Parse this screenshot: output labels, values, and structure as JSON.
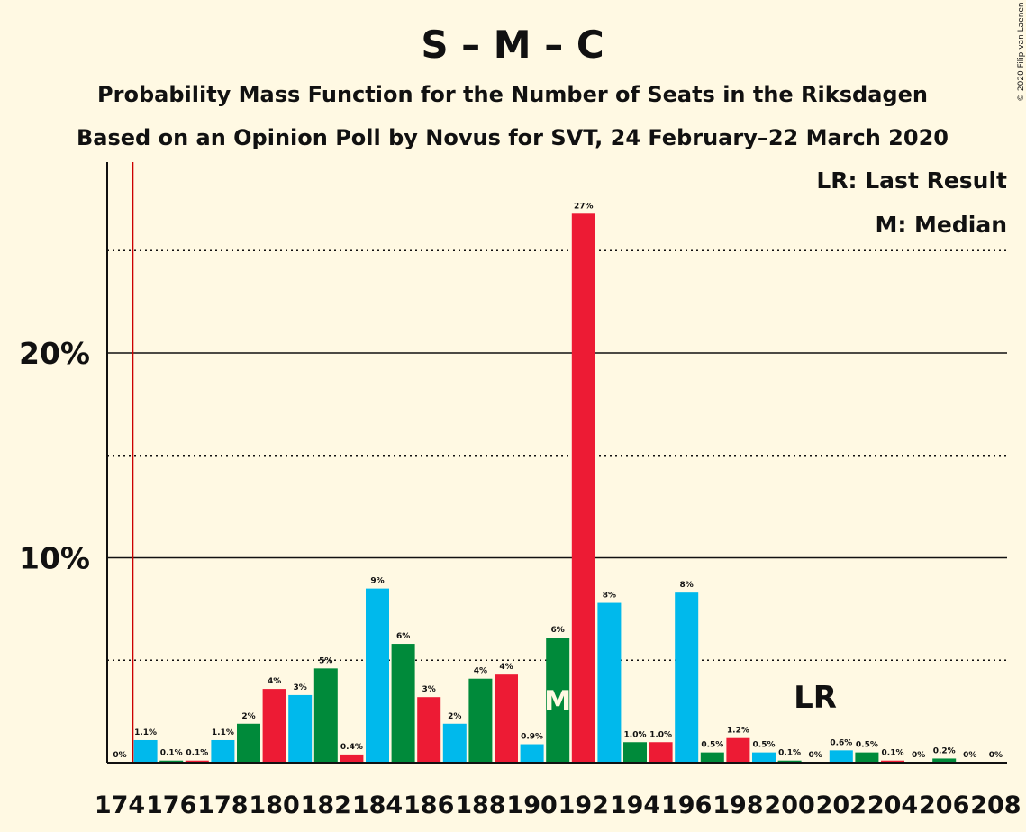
{
  "chart_data": {
    "type": "bar",
    "title": "S – M – C",
    "subtitle": "Probability Mass Function for the Number of Seats in the Riksdagen",
    "subtitle2": "Based on an Opinion Poll by Novus for SVT, 24 February–22 March 2020",
    "copyright": "© 2020 Filip van Laenen",
    "legend": [
      {
        "key": "lr",
        "text": "LR: Last Result"
      },
      {
        "key": "m",
        "text": "M: Median"
      }
    ],
    "legend_placement": "top-right",
    "ylim": [
      0,
      29
    ],
    "y_ticks": [
      {
        "value": 10,
        "label": "10%"
      },
      {
        "value": 20,
        "label": "20%"
      }
    ],
    "y_dotted": [
      5,
      15,
      25
    ],
    "x_tick_labels": [
      "174",
      "176",
      "178",
      "180",
      "182",
      "184",
      "186",
      "188",
      "190",
      "192",
      "194",
      "196",
      "198",
      "200",
      "202",
      "204",
      "206",
      "208"
    ],
    "last_result_seat": 175,
    "last_result_label": "LR",
    "median_seat": 191,
    "median_label": "M",
    "colors": {
      "S": "#ED1B34",
      "M": "#00B9EC",
      "C": "#008A3A",
      "lr_line": "#CC0000"
    },
    "bars": [
      {
        "seat": 174,
        "value": 0,
        "label": "0%",
        "color": "#ED1B34"
      },
      {
        "seat": 175,
        "value": 1.1,
        "label": "1.1%",
        "color": "#00B9EC"
      },
      {
        "seat": 176,
        "value": 0.1,
        "label": "0.1%",
        "color": "#008A3A"
      },
      {
        "seat": 177,
        "value": 0.1,
        "label": "0.1%",
        "color": "#ED1B34"
      },
      {
        "seat": 178,
        "value": 1.1,
        "label": "1.1%",
        "color": "#00B9EC"
      },
      {
        "seat": 179,
        "value": 1.9,
        "label": "2%",
        "color": "#008A3A"
      },
      {
        "seat": 180,
        "value": 3.6,
        "label": "4%",
        "color": "#ED1B34"
      },
      {
        "seat": 181,
        "value": 3.3,
        "label": "3%",
        "color": "#00B9EC"
      },
      {
        "seat": 182,
        "value": 4.6,
        "label": "5%",
        "color": "#008A3A"
      },
      {
        "seat": 183,
        "value": 0.4,
        "label": "0.4%",
        "color": "#ED1B34"
      },
      {
        "seat": 184,
        "value": 8.5,
        "label": "9%",
        "color": "#00B9EC"
      },
      {
        "seat": 185,
        "value": 5.8,
        "label": "6%",
        "color": "#008A3A"
      },
      {
        "seat": 186,
        "value": 3.2,
        "label": "3%",
        "color": "#ED1B34"
      },
      {
        "seat": 187,
        "value": 1.9,
        "label": "2%",
        "color": "#00B9EC"
      },
      {
        "seat": 188,
        "value": 4.1,
        "label": "4%",
        "color": "#008A3A"
      },
      {
        "seat": 189,
        "value": 4.3,
        "label": "4%",
        "color": "#ED1B34"
      },
      {
        "seat": 190,
        "value": 0.9,
        "label": "0.9%",
        "color": "#00B9EC"
      },
      {
        "seat": 191,
        "value": 6.1,
        "label": "6%",
        "color": "#008A3A"
      },
      {
        "seat": 192,
        "value": 26.8,
        "label": "27%",
        "color": "#ED1B34"
      },
      {
        "seat": 193,
        "value": 7.8,
        "label": "8%",
        "color": "#00B9EC"
      },
      {
        "seat": 194,
        "value": 1.0,
        "label": "1.0%",
        "color": "#008A3A"
      },
      {
        "seat": 195,
        "value": 1.0,
        "label": "1.0%",
        "color": "#ED1B34"
      },
      {
        "seat": 196,
        "value": 8.3,
        "label": "8%",
        "color": "#00B9EC"
      },
      {
        "seat": 197,
        "value": 0.5,
        "label": "0.5%",
        "color": "#008A3A"
      },
      {
        "seat": 198,
        "value": 1.2,
        "label": "1.2%",
        "color": "#ED1B34"
      },
      {
        "seat": 199,
        "value": 0.5,
        "label": "0.5%",
        "color": "#00B9EC"
      },
      {
        "seat": 200,
        "value": 0.1,
        "label": "0.1%",
        "color": "#008A3A"
      },
      {
        "seat": 201,
        "value": 0,
        "label": "0%",
        "color": "#ED1B34"
      },
      {
        "seat": 202,
        "value": 0.6,
        "label": "0.6%",
        "color": "#00B9EC"
      },
      {
        "seat": 203,
        "value": 0.5,
        "label": "0.5%",
        "color": "#008A3A"
      },
      {
        "seat": 204,
        "value": 0.1,
        "label": "0.1%",
        "color": "#ED1B34"
      },
      {
        "seat": 205,
        "value": 0,
        "label": "0%",
        "color": "#00B9EC"
      },
      {
        "seat": 206,
        "value": 0.2,
        "label": "0.2%",
        "color": "#008A3A"
      },
      {
        "seat": 207,
        "value": 0,
        "label": "0%",
        "color": "#ED1B34"
      },
      {
        "seat": 208,
        "value": 0,
        "label": "0%",
        "color": "#00B9EC"
      }
    ]
  }
}
